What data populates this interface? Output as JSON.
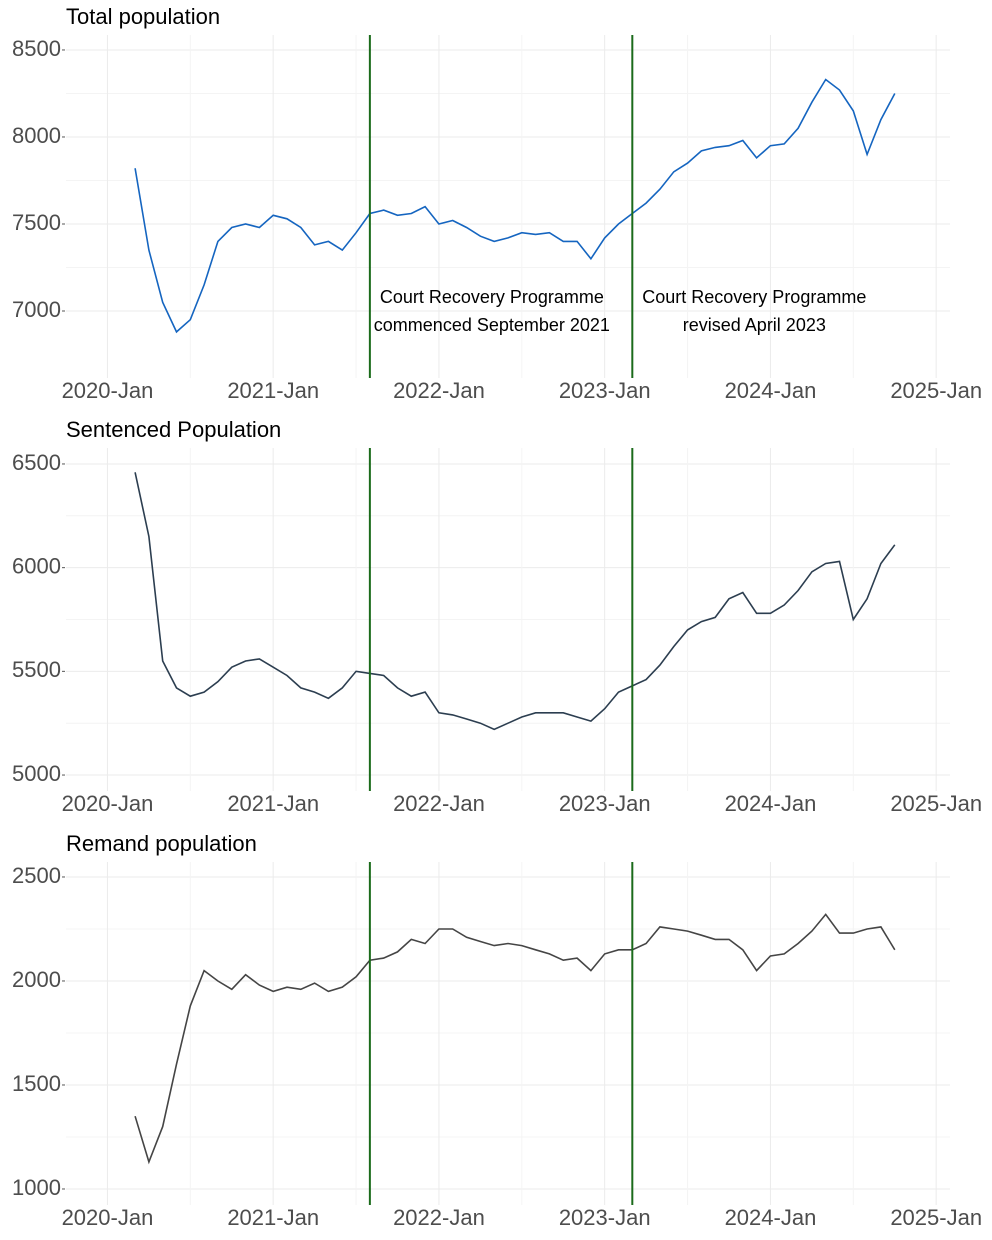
{
  "chart_data": [
    {
      "type": "line",
      "title": "Total population",
      "color": "#1565c0",
      "x": [
        "2020-03",
        "2020-04",
        "2020-05",
        "2020-06",
        "2020-07",
        "2020-08",
        "2020-09",
        "2020-10",
        "2020-11",
        "2020-12",
        "2021-01",
        "2021-02",
        "2021-03",
        "2021-04",
        "2021-05",
        "2021-06",
        "2021-07",
        "2021-08",
        "2021-09",
        "2021-10",
        "2021-11",
        "2021-12",
        "2022-01",
        "2022-02",
        "2022-03",
        "2022-04",
        "2022-05",
        "2022-06",
        "2022-07",
        "2022-08",
        "2022-09",
        "2022-10",
        "2022-11",
        "2022-12",
        "2023-01",
        "2023-02",
        "2023-03",
        "2023-04",
        "2023-05",
        "2023-06",
        "2023-07",
        "2023-08",
        "2023-09",
        "2023-10",
        "2023-11",
        "2023-12",
        "2024-01",
        "2024-02",
        "2024-03",
        "2024-04",
        "2024-05",
        "2024-06",
        "2024-07",
        "2024-08",
        "2024-09",
        "2024-10"
      ],
      "values": [
        7820,
        7350,
        7050,
        6880,
        6950,
        7150,
        7400,
        7480,
        7500,
        7480,
        7550,
        7530,
        7480,
        7380,
        7400,
        7350,
        7450,
        7560,
        7580,
        7550,
        7560,
        7600,
        7500,
        7520,
        7480,
        7430,
        7400,
        7420,
        7450,
        7440,
        7450,
        7400,
        7400,
        7300,
        7420,
        7500,
        7560,
        7620,
        7700,
        7800,
        7850,
        7920,
        7940,
        7950,
        7980,
        7880,
        7950,
        7960,
        8050,
        8200,
        8330,
        8270,
        8150,
        7900,
        8100,
        8250
      ],
      "xlim": [
        "2019-10",
        "2025-02"
      ],
      "xticks": [
        {
          "value": "2020-01",
          "label": "2020-Jan"
        },
        {
          "value": "2021-01",
          "label": "2021-Jan"
        },
        {
          "value": "2022-01",
          "label": "2022-Jan"
        },
        {
          "value": "2023-01",
          "label": "2023-Jan"
        },
        {
          "value": "2024-01",
          "label": "2024-Jan"
        },
        {
          "value": "2025-01",
          "label": "2025-Jan"
        }
      ],
      "ylim": [
        6615,
        8586
      ],
      "yticks": [
        7000,
        7500,
        8000,
        8500
      ],
      "grid": true,
      "vlines": [
        "2021-08",
        "2023-03"
      ],
      "vline_color": "#1b6b1b",
      "annotations": [
        {
          "x": "2021-08",
          "lines": [
            "Court Recovery Programme",
            "commenced September 2021"
          ]
        },
        {
          "x": "2023-03",
          "lines": [
            "Court Recovery Programme",
            "revised April 2023"
          ]
        }
      ]
    },
    {
      "type": "line",
      "title": "Sentenced Population",
      "color": "#2c3e50",
      "x": [
        "2020-03",
        "2020-04",
        "2020-05",
        "2020-06",
        "2020-07",
        "2020-08",
        "2020-09",
        "2020-10",
        "2020-11",
        "2020-12",
        "2021-01",
        "2021-02",
        "2021-03",
        "2021-04",
        "2021-05",
        "2021-06",
        "2021-07",
        "2021-08",
        "2021-09",
        "2021-10",
        "2021-11",
        "2021-12",
        "2022-01",
        "2022-02",
        "2022-03",
        "2022-04",
        "2022-05",
        "2022-06",
        "2022-07",
        "2022-08",
        "2022-09",
        "2022-10",
        "2022-11",
        "2022-12",
        "2023-01",
        "2023-02",
        "2023-03",
        "2023-04",
        "2023-05",
        "2023-06",
        "2023-07",
        "2023-08",
        "2023-09",
        "2023-10",
        "2023-11",
        "2023-12",
        "2024-01",
        "2024-02",
        "2024-03",
        "2024-04",
        "2024-05",
        "2024-06",
        "2024-07",
        "2024-08",
        "2024-09",
        "2024-10"
      ],
      "values": [
        6460,
        6150,
        5550,
        5420,
        5380,
        5400,
        5450,
        5520,
        5550,
        5560,
        5520,
        5480,
        5420,
        5400,
        5370,
        5420,
        5500,
        5490,
        5480,
        5420,
        5380,
        5400,
        5300,
        5290,
        5270,
        5250,
        5220,
        5250,
        5280,
        5300,
        5300,
        5300,
        5280,
        5260,
        5320,
        5400,
        5430,
        5460,
        5530,
        5620,
        5700,
        5740,
        5760,
        5850,
        5880,
        5780,
        5780,
        5820,
        5890,
        5980,
        6020,
        6030,
        5750,
        5850,
        6020,
        6110
      ],
      "xlim": [
        "2019-10",
        "2025-02"
      ],
      "xticks": [
        {
          "value": "2020-01",
          "label": "2020-Jan"
        },
        {
          "value": "2021-01",
          "label": "2021-Jan"
        },
        {
          "value": "2022-01",
          "label": "2022-Jan"
        },
        {
          "value": "2023-01",
          "label": "2023-Jan"
        },
        {
          "value": "2024-01",
          "label": "2024-Jan"
        },
        {
          "value": "2025-01",
          "label": "2025-Jan"
        }
      ],
      "ylim": [
        4923,
        6577
      ],
      "yticks": [
        5000,
        5500,
        6000,
        6500
      ],
      "grid": true,
      "vlines": [
        "2021-08",
        "2023-03"
      ],
      "vline_color": "#1b6b1b"
    },
    {
      "type": "line",
      "title": "Remand population",
      "color": "#454545",
      "x": [
        "2020-03",
        "2020-04",
        "2020-05",
        "2020-06",
        "2020-07",
        "2020-08",
        "2020-09",
        "2020-10",
        "2020-11",
        "2020-12",
        "2021-01",
        "2021-02",
        "2021-03",
        "2021-04",
        "2021-05",
        "2021-06",
        "2021-07",
        "2021-08",
        "2021-09",
        "2021-10",
        "2021-11",
        "2021-12",
        "2022-01",
        "2022-02",
        "2022-03",
        "2022-04",
        "2022-05",
        "2022-06",
        "2022-07",
        "2022-08",
        "2022-09",
        "2022-10",
        "2022-11",
        "2022-12",
        "2023-01",
        "2023-02",
        "2023-03",
        "2023-04",
        "2023-05",
        "2023-06",
        "2023-07",
        "2023-08",
        "2023-09",
        "2023-10",
        "2023-11",
        "2023-12",
        "2024-01",
        "2024-02",
        "2024-03",
        "2024-04",
        "2024-05",
        "2024-06",
        "2024-07",
        "2024-08",
        "2024-09",
        "2024-10"
      ],
      "values": [
        1350,
        1130,
        1300,
        1600,
        1880,
        2050,
        2000,
        1960,
        2030,
        1980,
        1950,
        1970,
        1960,
        1990,
        1950,
        1970,
        2020,
        2100,
        2110,
        2140,
        2200,
        2180,
        2250,
        2250,
        2210,
        2190,
        2170,
        2180,
        2170,
        2150,
        2130,
        2100,
        2110,
        2050,
        2130,
        2150,
        2150,
        2180,
        2260,
        2250,
        2240,
        2220,
        2200,
        2200,
        2150,
        2050,
        2120,
        2130,
        2180,
        2240,
        2320,
        2230,
        2230,
        2250,
        2260,
        2150
      ],
      "xlim": [
        "2019-10",
        "2025-02"
      ],
      "xticks": [
        {
          "value": "2020-01",
          "label": "2020-Jan"
        },
        {
          "value": "2021-01",
          "label": "2021-Jan"
        },
        {
          "value": "2022-01",
          "label": "2022-Jan"
        },
        {
          "value": "2023-01",
          "label": "2023-Jan"
        },
        {
          "value": "2024-01",
          "label": "2024-Jan"
        },
        {
          "value": "2025-01",
          "label": "2025-Jan"
        }
      ],
      "ylim": [
        923,
        2572
      ],
      "yticks": [
        1000,
        1500,
        2000,
        2500
      ],
      "grid": true,
      "vlines": [
        "2021-08",
        "2023-03"
      ],
      "vline_color": "#1b6b1b"
    }
  ]
}
